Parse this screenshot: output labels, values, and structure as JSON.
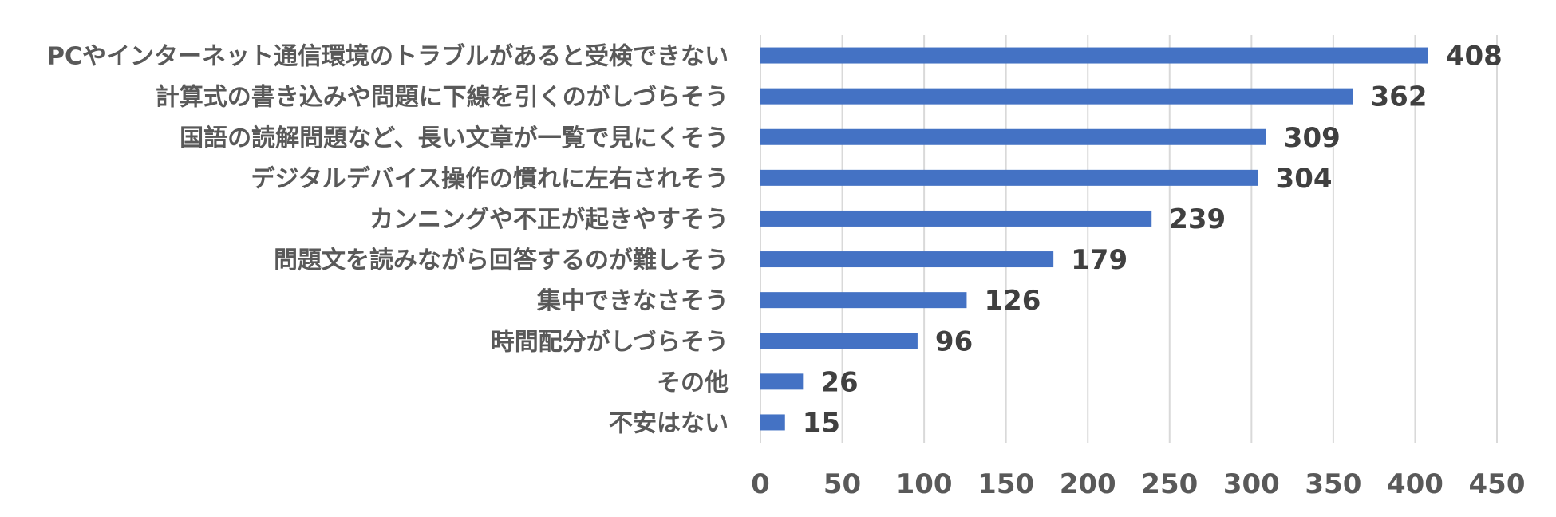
{
  "chart_data": {
    "type": "bar",
    "orientation": "horizontal",
    "categories": [
      "PCやインターネット通信環境のトラブルがあると受検できない",
      "計算式の書き込みや問題に下線を引くのがしづらそう",
      "国語の読解問題など、長い文章が一覧で見にくそう",
      "デジタルデバイス操作の慣れに左右されそう",
      "カンニングや不正が起きやすそう",
      "問題文を読みながら回答するのが難しそう",
      "集中できなさそう",
      "時間配分がしづらそう",
      "その他",
      "不安はない"
    ],
    "values": [
      408,
      362,
      309,
      304,
      239,
      179,
      126,
      96,
      26,
      15
    ],
    "value_labels": [
      "408",
      "362",
      "309",
      "304",
      "239",
      "179",
      "126",
      "96",
      "26",
      "15"
    ],
    "x_ticks": [
      "0",
      "50",
      "100",
      "150",
      "200",
      "250",
      "300",
      "350",
      "400",
      "450"
    ],
    "xlim": [
      0,
      450
    ],
    "grid": "vertical",
    "bar_color": "#4472c4",
    "title": "",
    "xlabel": "",
    "ylabel": ""
  }
}
